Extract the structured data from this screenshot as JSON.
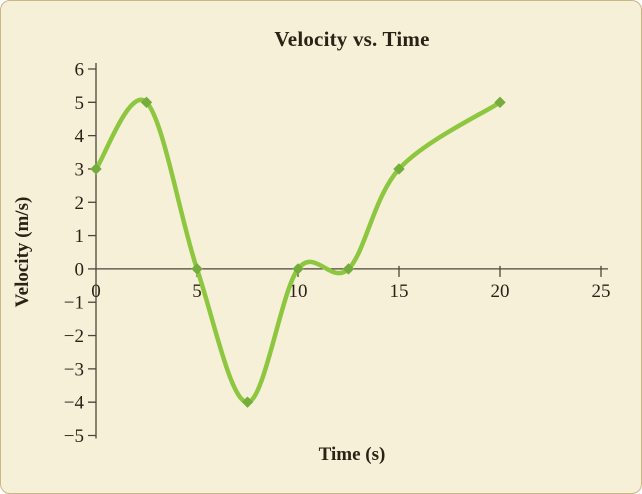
{
  "frame": {
    "background_color": "#f7f0d9",
    "border_color": "#c9b784"
  },
  "chart_data": {
    "type": "line",
    "title": "Velocity vs. Time",
    "xlabel": "Time (s)",
    "ylabel": "Velocity (m/s)",
    "x": [
      0,
      2.5,
      5,
      7.5,
      10,
      12.5,
      15,
      20
    ],
    "y": [
      3,
      5,
      0,
      -4,
      0,
      0,
      3,
      5
    ],
    "xlim": [
      0,
      25
    ],
    "ylim": [
      -5,
      6
    ],
    "xticks": [
      0,
      5,
      10,
      15,
      20,
      25
    ],
    "yticks": [
      -5,
      -4,
      -3,
      -2,
      -1,
      0,
      1,
      2,
      3,
      4,
      5,
      6
    ],
    "grid": false,
    "legend": "none",
    "marker": "diamond",
    "smooth": true,
    "line_color": "#8dc63f",
    "marker_color": "#74ad3c",
    "axis_color": "#4d4538",
    "text_color": "#2b2115"
  }
}
